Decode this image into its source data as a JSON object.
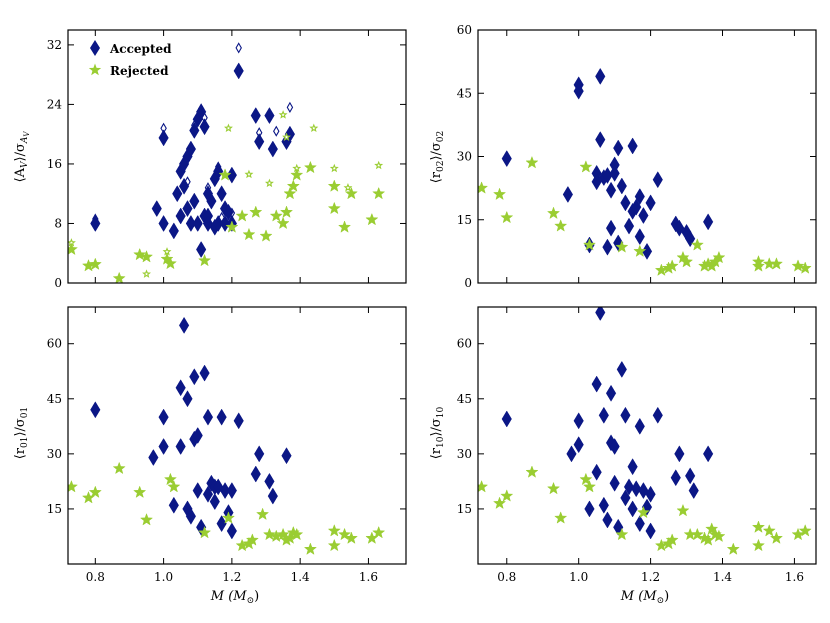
{
  "colors": {
    "accepted": "#0b1786",
    "rejected": "#9acd32"
  },
  "legend": {
    "accepted": "Accepted",
    "rejected": "Rejected"
  },
  "axis_text": {
    "x_main": "M",
    "x_unit": "(M",
    "x_sub": "⊙",
    "x_close": ")",
    "y_av": {
      "num": "⟨A",
      "num_sub": "V",
      "mid": "⟩/σ",
      "den_sub": "A",
      "den_subsub": "V"
    },
    "y_r02": {
      "num": "⟨r",
      "num_sub": "02",
      "mid": "⟩/σ",
      "den_sub": "02"
    },
    "y_r01": {
      "num": "⟨r",
      "num_sub": "01",
      "mid": "⟩/σ",
      "den_sub": "01"
    },
    "y_r10": {
      "num": "⟨r",
      "num_sub": "10",
      "mid": "⟩/σ",
      "den_sub": "10"
    }
  },
  "chart_data": [
    {
      "type": "scatter",
      "id": "av",
      "xlim": [
        0.72,
        1.71
      ],
      "ylim": [
        0,
        34
      ],
      "xticks": [
        0.8,
        1.0,
        1.2,
        1.4,
        1.6
      ],
      "yticks": [
        0,
        8,
        16,
        24,
        32
      ],
      "show_xticklabels": false,
      "series": [
        {
          "name": "Accepted",
          "marker": "diamond",
          "x": [
            0.8,
            0.98,
            1.0,
            1.0,
            1.03,
            1.04,
            1.05,
            1.05,
            1.06,
            1.06,
            1.07,
            1.07,
            1.08,
            1.08,
            1.09,
            1.09,
            1.1,
            1.1,
            1.11,
            1.11,
            1.12,
            1.12,
            1.13,
            1.13,
            1.13,
            1.14,
            1.15,
            1.15,
            1.16,
            1.16,
            1.17,
            1.18,
            1.18,
            1.19,
            1.2,
            1.2,
            1.22,
            1.27,
            1.28,
            1.31,
            1.32,
            1.36,
            1.37
          ],
          "y": [
            8,
            10,
            19.5,
            8,
            7,
            12,
            15,
            9,
            16,
            13,
            17,
            10,
            18,
            8,
            20.5,
            11,
            22,
            8,
            23,
            4.5,
            21,
            9,
            9,
            12,
            8,
            11,
            14,
            7.5,
            15,
            8,
            12,
            10,
            8,
            9.5,
            8,
            14.5,
            28.5,
            22.5,
            19,
            22.5,
            18,
            19,
            20
          ],
          "hollow_x": [
            0.8,
            1.0,
            1.09,
            1.11,
            1.12,
            1.13,
            1.17,
            1.2,
            1.22,
            1.28,
            1.33,
            1.37,
            1.16,
            1.07
          ],
          "hollow_y": [
            8.6,
            20.8,
            21.2,
            23.4,
            22.2,
            12.8,
            8.8,
            9.4,
            31.6,
            20.2,
            20.4,
            23.6,
            15.6,
            13.6
          ]
        },
        {
          "name": "Rejected",
          "marker": "star",
          "x": [
            0.73,
            0.78,
            0.8,
            0.87,
            0.93,
            0.95,
            1.01,
            1.02,
            1.12,
            1.18,
            1.2,
            1.23,
            1.25,
            1.27,
            1.3,
            1.33,
            1.35,
            1.36,
            1.37,
            1.38,
            1.39,
            1.43,
            1.5,
            1.5,
            1.53,
            1.55,
            1.61,
            1.63
          ],
          "y": [
            4.5,
            2.3,
            2.5,
            0.6,
            3.8,
            3.5,
            3.2,
            2.6,
            3,
            14.5,
            7.5,
            9,
            6.5,
            9.5,
            6.3,
            9,
            8,
            9.5,
            12,
            13,
            14.5,
            15.5,
            13,
            10,
            7.5,
            12,
            8.5,
            12
          ],
          "hollow_x": [
            0.73,
            0.95,
            1.01,
            1.19,
            1.25,
            1.31,
            1.35,
            1.39,
            1.44,
            1.5,
            1.54,
            1.63,
            1.36
          ],
          "hollow_y": [
            5.4,
            1.2,
            4.2,
            20.8,
            14.6,
            13.4,
            22.6,
            15.4,
            20.8,
            15.4,
            12.8,
            15.8,
            19.6
          ]
        }
      ]
    },
    {
      "type": "scatter",
      "id": "r02",
      "xlim": [
        0.72,
        1.66
      ],
      "ylim": [
        0,
        60
      ],
      "xticks": [
        0.8,
        1.0,
        1.2,
        1.4,
        1.6
      ],
      "yticks": [
        0,
        15,
        30,
        45,
        60
      ],
      "show_xticklabels": false,
      "series": [
        {
          "name": "Accepted",
          "marker": "diamond",
          "x": [
            0.8,
            0.97,
            1.0,
            1.0,
            1.03,
            1.05,
            1.05,
            1.06,
            1.06,
            1.07,
            1.08,
            1.08,
            1.09,
            1.09,
            1.1,
            1.1,
            1.11,
            1.11,
            1.12,
            1.13,
            1.14,
            1.15,
            1.15,
            1.16,
            1.17,
            1.17,
            1.18,
            1.19,
            1.2,
            1.22,
            1.27,
            1.28,
            1.3,
            1.31,
            1.36
          ],
          "y": [
            29.5,
            21,
            47,
            45.5,
            9,
            26,
            24,
            49,
            34,
            25,
            8.5,
            25.5,
            13,
            22,
            28,
            26,
            32,
            9.5,
            23,
            19,
            13.5,
            32.5,
            17,
            18,
            20.5,
            11,
            16,
            7.5,
            19,
            24.5,
            14,
            13,
            12,
            10.5,
            14.5
          ]
        },
        {
          "name": "Rejected",
          "marker": "star",
          "x": [
            0.73,
            0.78,
            0.8,
            0.87,
            0.93,
            0.95,
            1.02,
            1.03,
            1.12,
            1.17,
            1.23,
            1.25,
            1.26,
            1.29,
            1.3,
            1.33,
            1.35,
            1.36,
            1.37,
            1.38,
            1.39,
            1.5,
            1.5,
            1.53,
            1.55,
            1.61,
            1.63
          ],
          "y": [
            22.5,
            21,
            15.5,
            28.5,
            16.5,
            13.5,
            27.5,
            9,
            8.5,
            7.5,
            3,
            3.5,
            4,
            6,
            5,
            9,
            4,
            4.5,
            4,
            5,
            6,
            5,
            4,
            4.5,
            4.5,
            4,
            3.5
          ]
        }
      ]
    },
    {
      "type": "scatter",
      "id": "r01",
      "xlim": [
        0.72,
        1.71
      ],
      "ylim": [
        0,
        70
      ],
      "xticks": [
        0.8,
        1.0,
        1.2,
        1.4,
        1.6
      ],
      "yticks": [
        15,
        30,
        45,
        60
      ],
      "show_xticklabels": true,
      "series": [
        {
          "name": "Accepted",
          "marker": "diamond",
          "x": [
            0.8,
            0.97,
            1.0,
            1.0,
            1.03,
            1.05,
            1.05,
            1.06,
            1.07,
            1.07,
            1.08,
            1.09,
            1.09,
            1.1,
            1.1,
            1.11,
            1.12,
            1.13,
            1.13,
            1.14,
            1.15,
            1.15,
            1.16,
            1.17,
            1.17,
            1.18,
            1.19,
            1.2,
            1.2,
            1.22,
            1.27,
            1.28,
            1.31,
            1.32,
            1.36
          ],
          "y": [
            42,
            29,
            40,
            32,
            16,
            32,
            48,
            65,
            45,
            15,
            13,
            34,
            51,
            35,
            20,
            10,
            52,
            19,
            40,
            22,
            21,
            17,
            21,
            40,
            11,
            20,
            14,
            20,
            9,
            39,
            24.5,
            30,
            22.5,
            18.5,
            29.5
          ]
        },
        {
          "name": "Rejected",
          "marker": "star",
          "x": [
            0.73,
            0.78,
            0.8,
            0.87,
            0.93,
            0.95,
            1.02,
            1.03,
            1.12,
            1.19,
            1.23,
            1.25,
            1.26,
            1.29,
            1.31,
            1.33,
            1.35,
            1.36,
            1.37,
            1.38,
            1.39,
            1.43,
            1.5,
            1.5,
            1.53,
            1.55,
            1.61,
            1.63
          ],
          "y": [
            21,
            18,
            19.5,
            26,
            19.5,
            12,
            23,
            21,
            8.5,
            12.5,
            5,
            5.5,
            6.5,
            13.5,
            8,
            7.5,
            8,
            6.5,
            7,
            8.5,
            8,
            4,
            9,
            5,
            8,
            7,
            7,
            8.5
          ]
        }
      ]
    },
    {
      "type": "scatter",
      "id": "r10",
      "xlim": [
        0.72,
        1.66
      ],
      "ylim": [
        0,
        70
      ],
      "xticks": [
        0.8,
        1.0,
        1.2,
        1.4,
        1.6
      ],
      "yticks": [
        15,
        30,
        45,
        60
      ],
      "show_xticklabels": true,
      "series": [
        {
          "name": "Accepted",
          "marker": "diamond",
          "x": [
            0.8,
            0.98,
            1.0,
            1.0,
            1.03,
            1.05,
            1.05,
            1.06,
            1.07,
            1.07,
            1.08,
            1.09,
            1.09,
            1.1,
            1.1,
            1.11,
            1.12,
            1.13,
            1.13,
            1.14,
            1.15,
            1.15,
            1.16,
            1.17,
            1.17,
            1.18,
            1.19,
            1.2,
            1.2,
            1.22,
            1.27,
            1.28,
            1.31,
            1.32,
            1.36
          ],
          "y": [
            39.5,
            30,
            39,
            32.5,
            15,
            25,
            49,
            68.5,
            40.5,
            16,
            12,
            33,
            46.5,
            32,
            22,
            10,
            53,
            18,
            40.5,
            21,
            26.5,
            15,
            20.5,
            37.5,
            11,
            20,
            15.5,
            19,
            9,
            40.5,
            23.5,
            30,
            24,
            20,
            30
          ]
        },
        {
          "name": "Rejected",
          "marker": "star",
          "x": [
            0.73,
            0.78,
            0.8,
            0.87,
            0.93,
            0.95,
            1.02,
            1.03,
            1.12,
            1.18,
            1.23,
            1.25,
            1.26,
            1.29,
            1.31,
            1.33,
            1.35,
            1.36,
            1.37,
            1.38,
            1.39,
            1.43,
            1.5,
            1.5,
            1.53,
            1.55,
            1.61,
            1.63
          ],
          "y": [
            21,
            16.5,
            18.5,
            25,
            20.5,
            12.5,
            23,
            21,
            8,
            14,
            5,
            5.5,
            6.5,
            14.5,
            8,
            8,
            7,
            6.5,
            9.5,
            8,
            7.5,
            4,
            10,
            5,
            9,
            7,
            8,
            9
          ]
        }
      ]
    }
  ]
}
